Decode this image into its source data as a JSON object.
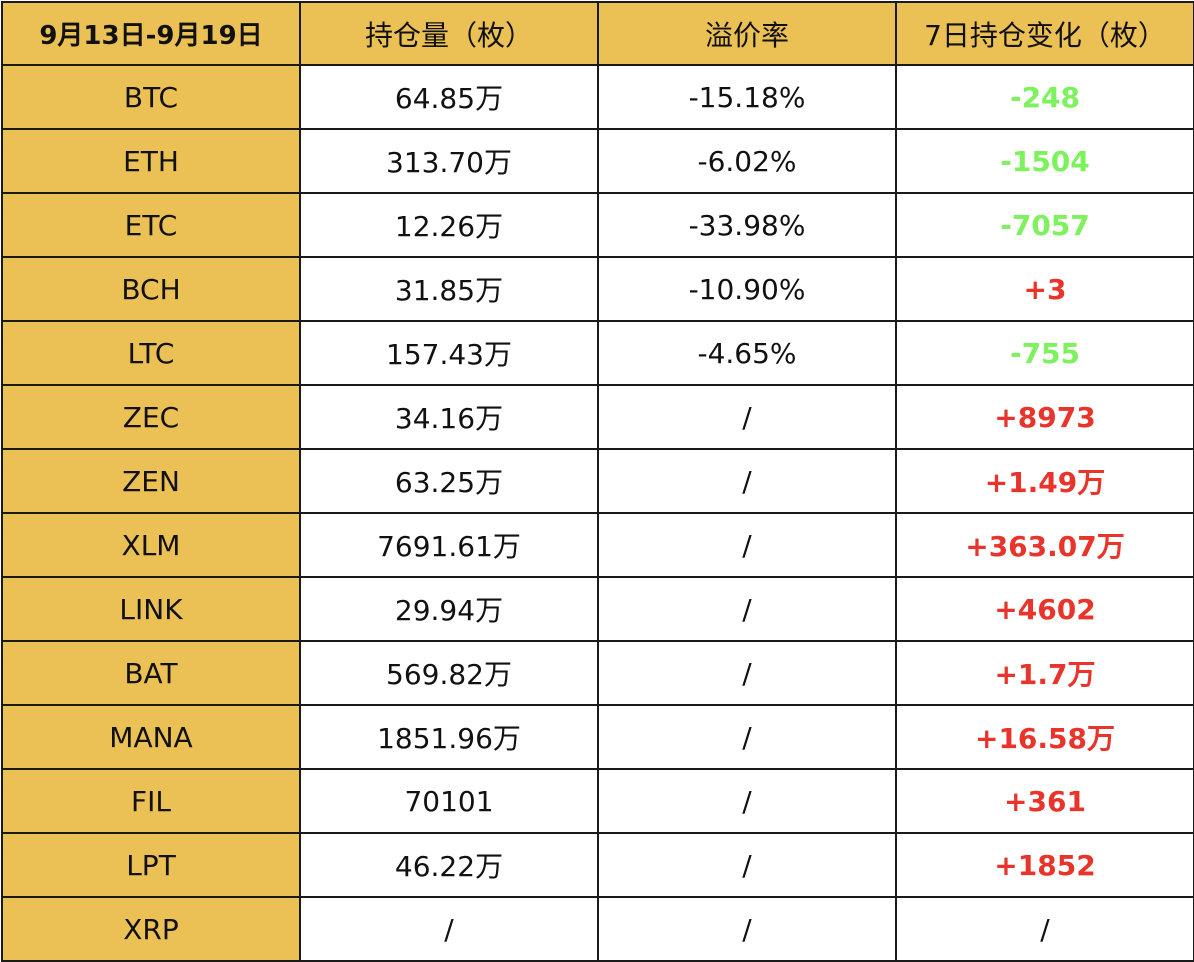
{
  "table": {
    "headers": [
      "9月13日-9月19日",
      "持仓量（枚）",
      "溢价率",
      "7日持仓变化（枚）"
    ],
    "rows": [
      {
        "coin": "BTC",
        "holding": "64.85万",
        "premium": "-15.18%",
        "change": "-248",
        "trend": "neg"
      },
      {
        "coin": "ETH",
        "holding": "313.70万",
        "premium": "-6.02%",
        "change": "-1504",
        "trend": "neg"
      },
      {
        "coin": "ETC",
        "holding": "12.26万",
        "premium": "-33.98%",
        "change": "-7057",
        "trend": "neg"
      },
      {
        "coin": "BCH",
        "holding": "31.85万",
        "premium": "-10.90%",
        "change": "+3",
        "trend": "pos"
      },
      {
        "coin": "LTC",
        "holding": "157.43万",
        "premium": "-4.65%",
        "change": "-755",
        "trend": "neg"
      },
      {
        "coin": "ZEC",
        "holding": "34.16万",
        "premium": "/",
        "change": "+8973",
        "trend": "pos"
      },
      {
        "coin": "ZEN",
        "holding": "63.25万",
        "premium": "/",
        "change": "+1.49万",
        "trend": "pos"
      },
      {
        "coin": "XLM",
        "holding": "7691.61万",
        "premium": "/",
        "change": "+363.07万",
        "trend": "pos"
      },
      {
        "coin": "LINK",
        "holding": "29.94万",
        "premium": "/",
        "change": "+4602",
        "trend": "pos"
      },
      {
        "coin": "BAT",
        "holding": "569.82万",
        "premium": "/",
        "change": "+1.7万",
        "trend": "pos"
      },
      {
        "coin": "MANA",
        "holding": "1851.96万",
        "premium": "/",
        "change": "+16.58万",
        "trend": "pos"
      },
      {
        "coin": "FIL",
        "holding": "70101",
        "premium": "/",
        "change": "+361",
        "trend": "pos"
      },
      {
        "coin": "LPT",
        "holding": "46.22万",
        "premium": "/",
        "change": "+1852",
        "trend": "pos"
      },
      {
        "coin": "XRP",
        "holding": "/",
        "premium": "/",
        "change": "/",
        "trend": "none"
      }
    ]
  },
  "colors": {
    "header_bg": "#ebc155",
    "increase": "#e8342a",
    "decrease": "#7cf25c",
    "border": "#1a1a1a"
  }
}
